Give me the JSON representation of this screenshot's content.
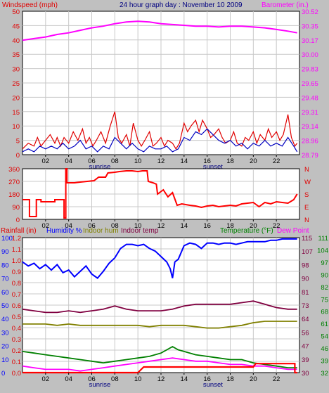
{
  "colors": {
    "bg": "#c0c0c0",
    "plot_bg": "#ffffff",
    "grid": "#c8c8c8",
    "wind_gust": "#e00000",
    "wind_avg": "#0000c0",
    "barometer": "#ff00ff",
    "direction": "#ff0000",
    "humidity": "#0000ff",
    "indoor_hum": "#808000",
    "indoor_temp": "#800040",
    "temperature": "#008000",
    "dew_point": "#ff00ff",
    "rainfall": "#ff0000",
    "title": "#000080"
  },
  "x_ticks": [
    "02",
    "04",
    "06",
    "08",
    "10",
    "12",
    "14",
    "16",
    "18",
    "20",
    "22"
  ],
  "chart_data": [
    {
      "type": "line",
      "title": "24 hour graph day : November 10 2009",
      "left_label": "Windspeed (mph)",
      "right_label": "Barometer (in.)",
      "x_range": [
        0,
        24
      ],
      "y_left_range": [
        0,
        50
      ],
      "y_left_ticks": [
        "0",
        "5",
        "10",
        "15",
        "20",
        "25",
        "30",
        "35",
        "40",
        "45",
        "50"
      ],
      "y_right_range": [
        28.79,
        30.52
      ],
      "y_right_ticks": [
        "28.79",
        "28.96",
        "29.14",
        "29.31",
        "29.48",
        "29.65",
        "29.83",
        "30.00",
        "30.17",
        "30.35",
        "30.52"
      ],
      "sun_labels": [
        {
          "text": "sunrise",
          "x": 6.7
        },
        {
          "text": "sunset",
          "x": 16.5
        }
      ],
      "series": [
        {
          "key": "barometer",
          "axis": "right",
          "x": [
            0,
            1,
            2,
            3,
            4,
            5,
            6,
            7,
            8,
            9,
            10,
            11,
            12,
            13,
            14,
            15,
            16,
            17,
            18,
            19,
            20,
            21,
            22,
            23,
            23.8
          ],
          "y": [
            30.17,
            30.19,
            30.21,
            30.24,
            30.26,
            30.29,
            30.32,
            30.34,
            30.37,
            30.39,
            30.4,
            30.39,
            30.37,
            30.36,
            30.35,
            30.34,
            30.34,
            30.33,
            30.34,
            30.34,
            30.33,
            30.32,
            30.3,
            30.28,
            30.26
          ]
        },
        {
          "key": "wind_gust",
          "axis": "left",
          "x": [
            0,
            0.5,
            1,
            1.3,
            1.6,
            2,
            2.4,
            2.8,
            3,
            3.3,
            3.6,
            4,
            4.4,
            4.8,
            5.2,
            5.5,
            5.8,
            6.1,
            6.4,
            6.8,
            7.2,
            7.6,
            8,
            8.3,
            8.6,
            9,
            9.3,
            9.6,
            10,
            10.3,
            10.6,
            11,
            11.3,
            11.6,
            12,
            12.3,
            12.6,
            13,
            13.3,
            13.6,
            14,
            14.3,
            14.6,
            15,
            15.3,
            15.6,
            16,
            16.3,
            16.6,
            17,
            17.3,
            17.6,
            18,
            18.3,
            18.6,
            19,
            19.3,
            19.6,
            20,
            20.3,
            20.6,
            21,
            21.3,
            21.6,
            22,
            22.3,
            22.6,
            23,
            23.3,
            23.6,
            23.8
          ],
          "y": [
            2,
            4,
            3,
            6,
            3,
            5,
            7,
            4,
            6,
            3,
            6,
            4,
            8,
            5,
            9,
            4,
            6,
            3,
            5,
            8,
            4,
            10,
            15,
            6,
            4,
            7,
            3,
            11,
            5,
            3,
            5,
            8,
            3,
            4,
            6,
            3,
            5,
            4,
            2,
            4,
            11,
            8,
            10,
            12,
            8,
            12,
            9,
            6,
            7,
            9,
            6,
            4,
            5,
            8,
            4,
            3,
            6,
            5,
            8,
            4,
            7,
            5,
            9,
            6,
            8,
            5,
            7,
            14,
            6,
            3,
            4
          ]
        },
        {
          "key": "wind_avg",
          "axis": "left",
          "x": [
            0,
            0.5,
            1,
            1.5,
            2,
            2.5,
            3,
            3.5,
            4,
            4.5,
            5,
            5.5,
            6,
            6.5,
            7,
            7.5,
            8,
            8.5,
            9,
            9.5,
            10,
            10.5,
            11,
            11.5,
            12,
            12.5,
            13,
            13.5,
            14,
            14.5,
            15,
            15.5,
            16,
            16.5,
            17,
            17.5,
            18,
            18.5,
            19,
            19.5,
            20,
            20.5,
            21,
            21.5,
            22,
            22.5,
            23,
            23.5,
            23.8
          ],
          "y": [
            1,
            2,
            1,
            3,
            2,
            3,
            2,
            4,
            2,
            3,
            5,
            2,
            3,
            1,
            3,
            2,
            6,
            4,
            2,
            4,
            2,
            1,
            3,
            2,
            2,
            3,
            1,
            2,
            6,
            5,
            8,
            7,
            9,
            7,
            5,
            4,
            5,
            3,
            4,
            2,
            4,
            3,
            5,
            3,
            4,
            3,
            6,
            3,
            1
          ]
        }
      ]
    },
    {
      "type": "line",
      "x_range": [
        0,
        24
      ],
      "y_left_range": [
        0,
        360
      ],
      "y_left_ticks": [
        "0",
        "90",
        "180",
        "270",
        "360"
      ],
      "y_right_ticks": [
        "N",
        "E",
        "S",
        "W",
        "N"
      ],
      "series": [
        {
          "key": "direction",
          "axis": "left",
          "x": [
            0,
            0.6,
            0.6,
            1.2,
            1.2,
            1.6,
            1.6,
            2.8,
            2.8,
            3.6,
            3.6,
            3.75,
            3.75,
            3.85,
            3.85,
            4.5,
            5,
            5.6,
            6.2,
            6.6,
            7.2,
            7.4,
            8,
            8.4,
            9,
            9.5,
            10,
            10.4,
            10.8,
            10.9,
            11.3,
            11.6,
            11.7,
            12.2,
            12.6,
            13,
            13.4,
            13.8,
            14.5,
            15,
            15.5,
            16,
            16.5,
            17,
            17.5,
            18,
            18.5,
            19,
            19.5,
            20,
            20.5,
            21,
            21.5,
            22,
            22.5,
            23,
            23.5,
            23.8
          ],
          "y": [
            140,
            140,
            20,
            20,
            140,
            140,
            125,
            125,
            140,
            140,
            10,
            10,
            360,
            360,
            260,
            260,
            265,
            270,
            275,
            300,
            300,
            330,
            335,
            340,
            345,
            345,
            340,
            345,
            345,
            270,
            260,
            250,
            180,
            210,
            160,
            190,
            100,
            110,
            100,
            95,
            85,
            95,
            100,
            90,
            95,
            100,
            95,
            110,
            115,
            120,
            90,
            120,
            110,
            125,
            120,
            115,
            140,
            180
          ]
        }
      ]
    },
    {
      "type": "line",
      "left_label": "Rainfall (in)",
      "label_humidity": "Humidity %",
      "label_indoor_hum": "Indoor hum",
      "label_indoor_temp": "Indoor temp",
      "label_temperature": "Temperature (°F)",
      "label_dew_point": "Dew Point",
      "x_range": [
        0,
        24
      ],
      "y_left_range": [
        0,
        1.2
      ],
      "y_left_ticks": [
        "0.0",
        "0.1",
        "0.2",
        "0.3",
        "0.4",
        "0.5",
        "0.6",
        "0.7",
        "0.8",
        "0.9",
        "1.0",
        "1.1",
        "1.2"
      ],
      "y_hum_ticks": [
        "0",
        "10",
        "20",
        "30",
        "40",
        "50",
        "60",
        "70",
        "80",
        "90",
        "100"
      ],
      "y_temp_range": [
        32,
        115
      ],
      "y_temp_ticks": [
        "32",
        "39",
        "46",
        "54",
        "61",
        "68",
        "75",
        "82",
        "90",
        "97",
        "104",
        "111"
      ],
      "y_temp_ticks_inner": [
        "30",
        "39",
        "47",
        "56",
        "64",
        "73",
        "81",
        "90",
        "98",
        "107",
        "115"
      ],
      "sun_labels": [
        {
          "text": "sunrise",
          "x": 6.7
        },
        {
          "text": "sunset",
          "x": 16.5
        }
      ],
      "series": [
        {
          "key": "humidity",
          "axis": "humidity",
          "x": [
            0,
            0.5,
            1,
            1.5,
            2,
            2.5,
            3,
            3.5,
            4,
            4.5,
            5,
            5.5,
            6,
            6.5,
            7,
            7.5,
            8,
            8.5,
            9,
            9.5,
            10,
            10.5,
            11,
            11.5,
            12,
            12.5,
            12.8,
            13,
            13.2,
            13.5,
            14,
            14.5,
            15,
            15.5,
            16,
            16.5,
            17,
            17.5,
            18,
            18.5,
            19,
            19.5,
            20,
            20.5,
            21,
            21.5,
            22,
            22.5,
            23,
            23.5,
            23.8
          ],
          "y": [
            82,
            79,
            81,
            77,
            80,
            76,
            80,
            74,
            76,
            71,
            75,
            79,
            73,
            70,
            75,
            81,
            85,
            92,
            95,
            95,
            94,
            95,
            92,
            90,
            86,
            82,
            77,
            70,
            82,
            84,
            94,
            96,
            95,
            92,
            96,
            96,
            95,
            96,
            96,
            95,
            96,
            97,
            97,
            97,
            97,
            98,
            98,
            99,
            99,
            99,
            99
          ]
        },
        {
          "key": "indoor_temp",
          "axis": "temp",
          "x": [
            0,
            1,
            2,
            3,
            4,
            5,
            6,
            7,
            8,
            9,
            10,
            11,
            12,
            13,
            14,
            15,
            16,
            17,
            18,
            19,
            20,
            21,
            22,
            23,
            23.8
          ],
          "y": [
            71,
            70,
            69,
            69,
            70,
            69,
            70,
            71,
            73,
            71,
            70,
            70,
            70,
            71,
            73,
            74,
            74,
            74,
            74,
            75,
            76,
            74,
            72,
            71,
            71
          ]
        },
        {
          "key": "indoor_hum",
          "axis": "humidity",
          "x": [
            0,
            1,
            2,
            3,
            4,
            5,
            6,
            7,
            8,
            9,
            10,
            11,
            12,
            13,
            14,
            15,
            16,
            17,
            18,
            19,
            20,
            21,
            22,
            23,
            23.8
          ],
          "y": [
            36,
            36,
            36,
            35,
            36,
            35,
            35,
            35,
            35,
            35,
            35,
            34,
            35,
            35,
            35,
            34,
            33,
            33,
            34,
            35,
            37,
            38,
            38,
            38,
            38
          ]
        },
        {
          "key": "temperature",
          "axis": "temp",
          "x": [
            0,
            1,
            2,
            3,
            4,
            5,
            6,
            7,
            8,
            9,
            10,
            11,
            12,
            12.5,
            13,
            13.5,
            14,
            15,
            16,
            17,
            18,
            19,
            20,
            21,
            22,
            23,
            23.8
          ],
          "y": [
            45,
            44,
            43,
            42,
            41,
            40,
            39,
            38,
            39,
            40,
            41,
            42,
            44,
            46,
            48,
            46,
            45,
            43,
            42,
            41,
            40,
            40,
            38,
            37,
            36,
            35,
            35
          ]
        },
        {
          "key": "dew_point",
          "axis": "temp",
          "x": [
            0,
            1,
            2,
            3,
            4,
            5,
            6,
            7,
            8,
            9,
            10,
            11,
            12,
            13,
            14,
            15,
            16,
            17,
            18,
            19,
            20,
            21,
            22,
            23,
            23.8
          ],
          "y": [
            36,
            35,
            34,
            34,
            34,
            33,
            34,
            35,
            36,
            37,
            38,
            39,
            40,
            41,
            40,
            39,
            39,
            38,
            37,
            37,
            36,
            36,
            35,
            34,
            34
          ]
        },
        {
          "key": "rainfall",
          "axis": "rain",
          "x": [
            0,
            10,
            10.5,
            20,
            20.2,
            23.6,
            23.6,
            23.8
          ],
          "y": [
            0,
            0,
            0.05,
            0.05,
            0.08,
            0.08,
            0,
            0
          ]
        }
      ]
    }
  ]
}
